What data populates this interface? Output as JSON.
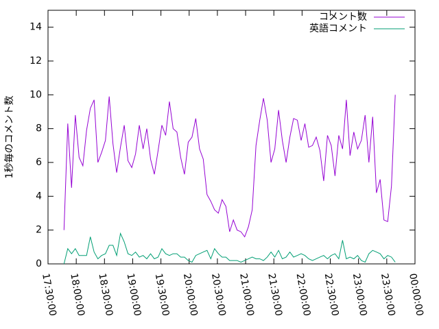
{
  "chart_data": {
    "type": "line",
    "ylabel": "1秒毎のコメント数",
    "legend": "top-right",
    "xlim": [
      "17:30:00",
      "00:00:00"
    ],
    "xticks": [
      "17:30:00",
      "18:00:00",
      "18:30:00",
      "19:00:00",
      "19:30:00",
      "20:00:00",
      "20:30:00",
      "21:00:00",
      "21:30:00",
      "22:00:00",
      "22:30:00",
      "23:00:00",
      "23:30:00",
      "00:00:00"
    ],
    "ylim": [
      0,
      15
    ],
    "yticks": [
      0,
      2,
      4,
      6,
      8,
      10,
      12,
      14
    ],
    "x": [
      "17:47",
      "17:51",
      "17:55",
      "17:59",
      "18:03",
      "18:07",
      "18:11",
      "18:15",
      "18:19",
      "18:23",
      "18:27",
      "18:31",
      "18:35",
      "18:39",
      "18:43",
      "18:47",
      "18:51",
      "18:55",
      "18:59",
      "19:03",
      "19:07",
      "19:11",
      "19:15",
      "19:19",
      "19:23",
      "19:27",
      "19:31",
      "19:35",
      "19:39",
      "19:43",
      "19:47",
      "19:51",
      "19:55",
      "19:59",
      "20:03",
      "20:07",
      "20:11",
      "20:15",
      "20:19",
      "20:23",
      "20:27",
      "20:31",
      "20:35",
      "20:39",
      "20:43",
      "20:47",
      "20:51",
      "20:55",
      "20:59",
      "21:03",
      "21:07",
      "21:11",
      "21:15",
      "21:19",
      "21:23",
      "21:27",
      "21:31",
      "21:35",
      "21:39",
      "21:43",
      "21:47",
      "21:51",
      "21:55",
      "21:59",
      "22:03",
      "22:07",
      "22:11",
      "22:15",
      "22:19",
      "22:23",
      "22:27",
      "22:31",
      "22:35",
      "22:39",
      "22:43",
      "22:47",
      "22:51",
      "22:55",
      "22:59",
      "23:03",
      "23:07",
      "23:11",
      "23:15",
      "23:19",
      "23:23",
      "23:27",
      "23:31",
      "23:35",
      "23:39"
    ],
    "series": [
      {
        "name": "コメント数",
        "color": "#9400d3",
        "values": [
          2,
          8.3,
          4.5,
          8.8,
          6.3,
          5.8,
          7.9,
          9.2,
          9.7,
          6,
          6.6,
          7.3,
          9.9,
          7.1,
          5.4,
          6.9,
          8.2,
          6.1,
          5.7,
          6.5,
          8.2,
          6.8,
          8,
          6.2,
          5.3,
          6.7,
          8.2,
          7.6,
          9.6,
          8,
          7.8,
          6.3,
          5.3,
          7.2,
          7.5,
          8.6,
          6.8,
          6.2,
          4.1,
          3.7,
          3.2,
          3,
          3.8,
          3.4,
          1.9,
          2.6,
          2,
          1.9,
          1.6,
          2.2,
          3.2,
          7,
          8.5,
          9.8,
          8.5,
          6,
          6.8,
          9.1,
          7.3,
          6,
          7.5,
          8.6,
          8.5,
          7.3,
          8.3,
          6.9,
          7,
          7.5,
          6.7,
          4.9,
          7.6,
          7,
          5.2,
          7.6,
          6.8,
          9.7,
          6.4,
          7.8,
          6.8,
          7.3,
          8.8,
          6,
          8.7,
          4.2,
          5,
          2.6,
          2.5,
          4.6,
          10
        ]
      },
      {
        "name": "英語コメント",
        "color": "#009e73",
        "values": [
          0,
          0.9,
          0.6,
          0.9,
          0.5,
          0.5,
          0.5,
          1.6,
          0.7,
          0.3,
          0.5,
          0.6,
          1.1,
          1.1,
          0.5,
          1.8,
          1.3,
          0.6,
          0.5,
          0.7,
          0.4,
          0.5,
          0.3,
          0.6,
          0.3,
          0.4,
          0.9,
          0.6,
          0.5,
          0.6,
          0.6,
          0.4,
          0.4,
          0.2,
          0.1,
          0.5,
          0.6,
          0.7,
          0.8,
          0.3,
          0.9,
          0.6,
          0.4,
          0.4,
          0.2,
          0.2,
          0.2,
          0.1,
          0.2,
          0.3,
          0.4,
          0.3,
          0.3,
          0.2,
          0.4,
          0.7,
          0.4,
          0.8,
          0.3,
          0.4,
          0.7,
          0.4,
          0.5,
          0.6,
          0.5,
          0.3,
          0.2,
          0.3,
          0.4,
          0.5,
          0.3,
          0.5,
          0.6,
          0.3,
          1.4,
          0.3,
          0.4,
          0.3,
          0.5,
          0.2,
          0.1,
          0.6,
          0.8,
          0.7,
          0.6,
          0.3,
          0.5,
          0.4,
          0.1
        ]
      }
    ]
  }
}
